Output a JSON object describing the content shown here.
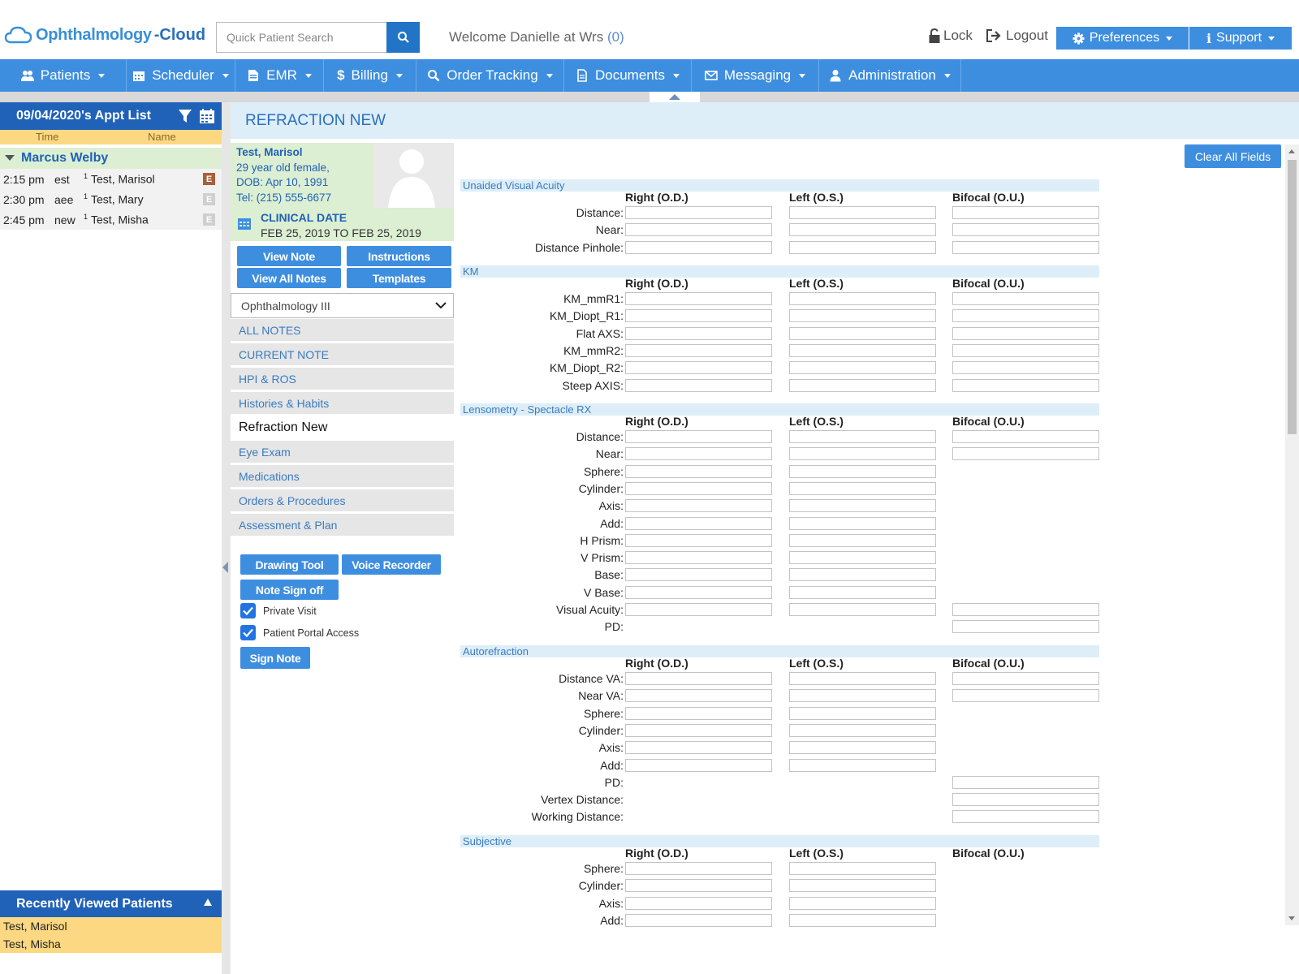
{
  "header": {
    "logo_part1": "Ophthalmology",
    "logo_part2": "-Cloud",
    "search_placeholder": "Quick Patient Search",
    "welcome_text": "Welcome Danielle at Wrs",
    "welcome_count": "(0)",
    "lock_label": "Lock",
    "logout_label": "Logout",
    "preferences_label": "Preferences",
    "support_label": "Support"
  },
  "nav": {
    "items": [
      {
        "label": "Patients",
        "icon": "users-icon"
      },
      {
        "label": "Scheduler",
        "icon": "calendar-icon"
      },
      {
        "label": "EMR",
        "icon": "file-icon"
      },
      {
        "label": "Billing",
        "icon": "dollar-icon"
      },
      {
        "label": "Order Tracking",
        "icon": "search-icon"
      },
      {
        "label": "Documents",
        "icon": "document-icon"
      },
      {
        "label": "Messaging",
        "icon": "envelope-icon"
      },
      {
        "label": "Administration",
        "icon": "user-icon"
      }
    ]
  },
  "appointments": {
    "title": "09/04/2020's Appt List",
    "col_time": "Time",
    "col_name": "Name",
    "provider": "Marcus Welby",
    "rows": [
      {
        "time": "2:15 pm",
        "type": "est",
        "sup": "1",
        "name": "Test, Marisol",
        "badge": "E",
        "badge_color": "#a8603a"
      },
      {
        "time": "2:30 pm",
        "type": "aee",
        "sup": "1",
        "name": "Test, Mary",
        "badge": "E",
        "badge_color": "#cfcfcf"
      },
      {
        "time": "2:45 pm",
        "type": "new",
        "sup": "1",
        "name": "Test, Misha",
        "badge": "E",
        "badge_color": "#cfcfcf"
      }
    ],
    "recent_title": "Recently Viewed Patients",
    "recent": [
      "Test, Marisol",
      "Test, Misha"
    ]
  },
  "page": {
    "title": "REFRACTION NEW"
  },
  "patient": {
    "name": "Test, Marisol",
    "age_sex": "29 year old female,",
    "dob": "DOB: Apr 10, 1991",
    "tel": "Tel: (215) 555-6677",
    "clinical_date_label": "CLINICAL DATE",
    "clinical_date_range": "FEB 25, 2019 TO FEB 25, 2019"
  },
  "buttons": {
    "view_note": "View Note",
    "instructions": "Instructions",
    "view_all_notes": "View All Notes",
    "templates": "Templates",
    "drawing_tool": "Drawing Tool",
    "voice_recorder": "Voice Recorder",
    "note_sign_off": "Note Sign off",
    "sign_note": "Sign Note",
    "clear_all_fields": "Clear All Fields"
  },
  "template_select": {
    "value": "Ophthalmology III"
  },
  "note_sections": [
    {
      "label": "ALL NOTES",
      "active": false
    },
    {
      "label": "CURRENT NOTE",
      "active": false
    },
    {
      "label": "HPI & ROS",
      "active": false
    },
    {
      "label": "Histories & Habits",
      "active": false
    },
    {
      "label": "Refraction New",
      "active": true
    },
    {
      "label": "Eye Exam",
      "active": false
    },
    {
      "label": "Medications",
      "active": false
    },
    {
      "label": "Orders & Procedures",
      "active": false
    },
    {
      "label": "Assessment & Plan",
      "active": false
    }
  ],
  "checkboxes": {
    "private_visit": "Private Visit",
    "portal_access": "Patient Portal Access"
  },
  "form": {
    "col_right": "Right (O.D.)",
    "col_left": "Left (O.S.)",
    "col_bifocal": "Bifocal (O.U.)",
    "sections": [
      {
        "title": "Unaided Visual Acuity",
        "rows": [
          {
            "label": "Distance:",
            "od": true,
            "os": true,
            "ou": true
          },
          {
            "label": "Near:",
            "od": true,
            "os": true,
            "ou": true
          },
          {
            "label": "Distance Pinhole:",
            "od": true,
            "os": true,
            "ou": true
          }
        ]
      },
      {
        "title": "KM",
        "rows": [
          {
            "label": "KM_mmR1:",
            "od": true,
            "os": true,
            "ou": true
          },
          {
            "label": "KM_Diopt_R1:",
            "od": true,
            "os": true,
            "ou": true
          },
          {
            "label": "Flat AXS:",
            "od": true,
            "os": true,
            "ou": true
          },
          {
            "label": "KM_mmR2:",
            "od": true,
            "os": true,
            "ou": true
          },
          {
            "label": "KM_Diopt_R2:",
            "od": true,
            "os": true,
            "ou": true
          },
          {
            "label": "Steep AXIS:",
            "od": true,
            "os": true,
            "ou": true
          }
        ]
      },
      {
        "title": "Lensometry - Spectacle RX",
        "rows": [
          {
            "label": "Distance:",
            "od": true,
            "os": true,
            "ou": true
          },
          {
            "label": "Near:",
            "od": true,
            "os": true,
            "ou": true
          },
          {
            "label": "Sphere:",
            "od": true,
            "os": true,
            "ou": false
          },
          {
            "label": "Cylinder:",
            "od": true,
            "os": true,
            "ou": false
          },
          {
            "label": "Axis:",
            "od": true,
            "os": true,
            "ou": false
          },
          {
            "label": "Add:",
            "od": true,
            "os": true,
            "ou": false
          },
          {
            "label": "H Prism:",
            "od": true,
            "os": true,
            "ou": false
          },
          {
            "label": "V Prism:",
            "od": true,
            "os": true,
            "ou": false
          },
          {
            "label": "Base:",
            "od": true,
            "os": true,
            "ou": false
          },
          {
            "label": "V Base:",
            "od": true,
            "os": true,
            "ou": false
          },
          {
            "label": "Visual Acuity:",
            "od": true,
            "os": true,
            "ou": true
          },
          {
            "label": "PD:",
            "od": false,
            "os": false,
            "ou": true
          }
        ]
      },
      {
        "title": "Autorefraction",
        "rows": [
          {
            "label": "Distance VA:",
            "od": true,
            "os": true,
            "ou": true
          },
          {
            "label": "Near VA:",
            "od": true,
            "os": true,
            "ou": true
          },
          {
            "label": "Sphere:",
            "od": true,
            "os": true,
            "ou": false
          },
          {
            "label": "Cylinder:",
            "od": true,
            "os": true,
            "ou": false
          },
          {
            "label": "Axis:",
            "od": true,
            "os": true,
            "ou": false
          },
          {
            "label": "Add:",
            "od": true,
            "os": true,
            "ou": false
          },
          {
            "label": "PD:",
            "od": false,
            "os": false,
            "ou": true
          },
          {
            "label": "Vertex Distance:",
            "od": false,
            "os": false,
            "ou": true
          },
          {
            "label": "Working Distance:",
            "od": false,
            "os": false,
            "ou": true
          }
        ]
      },
      {
        "title": "Subjective",
        "rows": [
          {
            "label": "Sphere:",
            "od": true,
            "os": true,
            "ou": false
          },
          {
            "label": "Cylinder:",
            "od": true,
            "os": true,
            "ou": false
          },
          {
            "label": "Axis:",
            "od": true,
            "os": true,
            "ou": false
          },
          {
            "label": "Add:",
            "od": true,
            "os": true,
            "ou": false
          }
        ]
      }
    ]
  }
}
